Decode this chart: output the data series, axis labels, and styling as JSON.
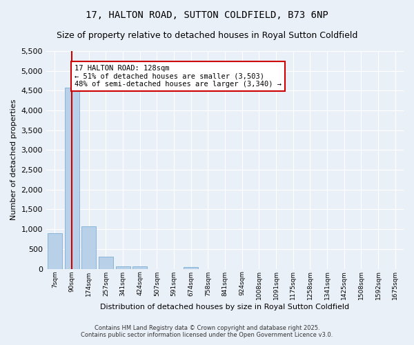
{
  "title": "17, HALTON ROAD, SUTTON COLDFIELD, B73 6NP",
  "subtitle": "Size of property relative to detached houses in Royal Sutton Coldfield",
  "xlabel": "Distribution of detached houses by size in Royal Sutton Coldfield",
  "ylabel": "Number of detached properties",
  "bar_color": "#b8d0e8",
  "bar_edge_color": "#7aadd4",
  "marker_color": "#cc0000",
  "annotation_box_color": "#cc0000",
  "annotation_line1": "17 HALTON ROAD: 128sqm",
  "annotation_line2": "← 51% of detached houses are smaller (3,503)",
  "annotation_line3": "48% of semi-detached houses are larger (3,340) →",
  "marker_bin": 1,
  "ylim": [
    0,
    5500
  ],
  "yticks": [
    0,
    500,
    1000,
    1500,
    2000,
    2500,
    3000,
    3500,
    4000,
    4500,
    5000,
    5500
  ],
  "categories": [
    "7sqm",
    "90sqm",
    "174sqm",
    "257sqm",
    "341sqm",
    "424sqm",
    "507sqm",
    "591sqm",
    "674sqm",
    "758sqm",
    "841sqm",
    "924sqm",
    "1008sqm",
    "1091sqm",
    "1175sqm",
    "1258sqm",
    "1341sqm",
    "1425sqm",
    "1508sqm",
    "1592sqm",
    "1675sqm"
  ],
  "values": [
    900,
    4570,
    1080,
    300,
    70,
    55,
    0,
    0,
    50,
    0,
    0,
    0,
    0,
    0,
    0,
    0,
    0,
    0,
    0,
    0,
    0
  ],
  "copyright_text": "Contains HM Land Registry data © Crown copyright and database right 2025.\nContains public sector information licensed under the Open Government Licence v3.0.",
  "background_color": "#eaf0f8",
  "plot_bg_color": "#eaf0f8",
  "title_fontsize": 10,
  "subtitle_fontsize": 9,
  "ylabel_fontsize": 8,
  "xlabel_fontsize": 8
}
